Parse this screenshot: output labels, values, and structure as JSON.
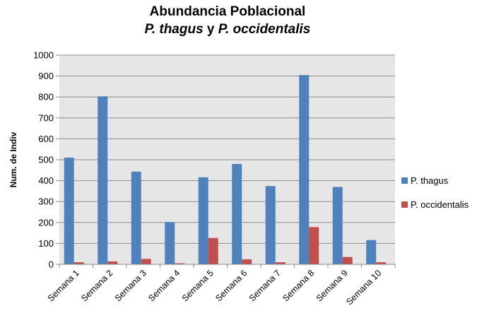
{
  "chart_data": {
    "type": "bar",
    "title": "Abundancia Poblacional",
    "subtitle_prefix": "P. thagus",
    "subtitle_connector": " y ",
    "subtitle_suffix": "P. occidentalis",
    "xlabel": "",
    "ylabel": "Num. de Indiv",
    "ylim": [
      0,
      1000
    ],
    "yticks": [
      "0",
      "100",
      "200",
      "300",
      "400",
      "500",
      "600",
      "700",
      "800",
      "900",
      "1000"
    ],
    "grid": true,
    "legend_position": "right",
    "categories": [
      "Semana 1",
      "Semana 2",
      "Semana 3",
      "Semana 4",
      "Semana 5",
      "Semana 6",
      "Semana 7",
      "Semana 8",
      "Semana 9",
      "Semana 10"
    ],
    "series": [
      {
        "name": "P. thagus",
        "color": "#4F81BD",
        "values": [
          510,
          803,
          443,
          202,
          416,
          480,
          374,
          905,
          370,
          116
        ]
      },
      {
        "name": "P. occidentalis",
        "color": "#C0504D",
        "values": [
          10,
          14,
          26,
          5,
          126,
          24,
          10,
          178,
          35,
          10
        ]
      }
    ],
    "plot_background": "#E6E6E6"
  }
}
